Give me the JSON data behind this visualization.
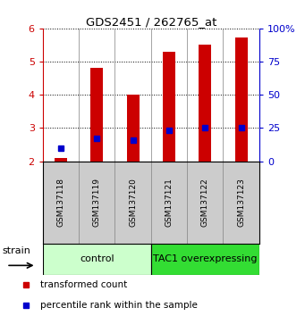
{
  "title": "GDS2451 / 262765_at",
  "samples": [
    "GSM137118",
    "GSM137119",
    "GSM137120",
    "GSM137121",
    "GSM137122",
    "GSM137123"
  ],
  "transformed_counts": [
    2.1,
    4.82,
    4.0,
    5.3,
    5.52,
    5.72
  ],
  "percentile_ranks": [
    0.1,
    0.17,
    0.16,
    0.23,
    0.25,
    0.25
  ],
  "ylim_left": [
    2,
    6
  ],
  "ylim_right": [
    0,
    1
  ],
  "yticks_left": [
    2,
    3,
    4,
    5,
    6
  ],
  "yticks_right": [
    0,
    0.25,
    0.5,
    0.75,
    1.0
  ],
  "ytick_labels_right": [
    "0",
    "25",
    "50",
    "75",
    "100%"
  ],
  "ytick_labels_left": [
    "2",
    "3",
    "4",
    "5",
    "6"
  ],
  "bar_color": "#cc0000",
  "dot_color": "#0000cc",
  "bar_bottom": 2.0,
  "bar_width": 0.35,
  "group_bg_color_control": "#ccffcc",
  "group_bg_color_tac1": "#33dd33",
  "xlabel_area_color": "#cccccc",
  "legend_red_label": "transformed count",
  "legend_blue_label": "percentile rank within the sample",
  "strain_label": "strain",
  "control_label": "control",
  "tac1_label": "TAC1 overexpressing"
}
